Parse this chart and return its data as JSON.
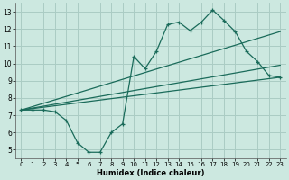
{
  "xlabel": "Humidex (Indice chaleur)",
  "bg_color": "#cce8e0",
  "grid_color": "#aaccC4",
  "line_color": "#1a6b5a",
  "xlim": [
    -0.5,
    23.5
  ],
  "ylim": [
    4.5,
    13.5
  ],
  "xticks": [
    0,
    1,
    2,
    3,
    4,
    5,
    6,
    7,
    8,
    9,
    10,
    11,
    12,
    13,
    14,
    15,
    16,
    17,
    18,
    19,
    20,
    21,
    22,
    23
  ],
  "yticks": [
    5,
    6,
    7,
    8,
    9,
    10,
    11,
    12,
    13
  ],
  "line1_x": [
    0,
    1,
    2,
    3,
    4,
    5,
    6,
    7,
    8,
    9,
    10,
    11,
    12,
    13,
    14,
    15,
    16,
    17,
    18,
    19,
    20,
    21,
    22,
    23
  ],
  "line1_y": [
    7.3,
    7.3,
    7.3,
    7.2,
    6.7,
    5.4,
    4.85,
    4.85,
    6.0,
    6.5,
    10.4,
    9.7,
    10.7,
    12.25,
    12.4,
    11.9,
    12.4,
    13.1,
    12.5,
    11.85,
    10.7,
    10.1,
    9.3,
    9.2
  ],
  "line2_x": [
    0,
    23
  ],
  "line2_y": [
    7.3,
    9.2
  ],
  "line3_x": [
    0,
    23
  ],
  "line3_y": [
    7.3,
    9.9
  ],
  "line4_x": [
    0,
    23
  ],
  "line4_y": [
    7.3,
    11.85
  ]
}
